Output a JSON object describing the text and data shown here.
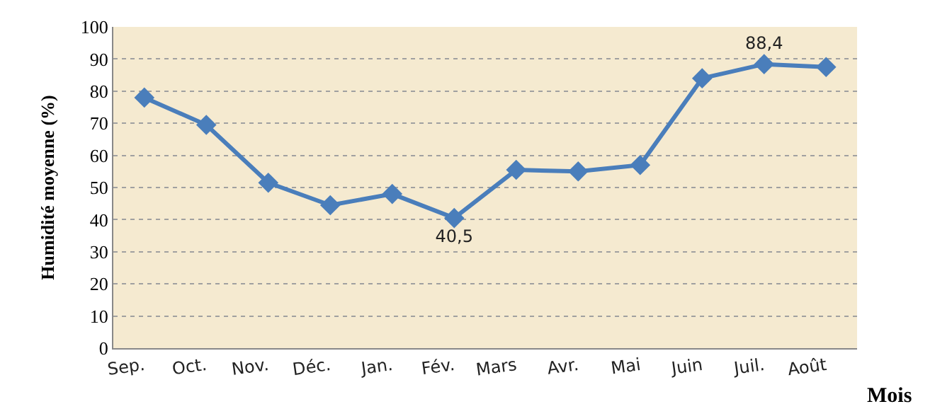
{
  "chart_data": {
    "type": "line",
    "categories": [
      "Sep.",
      "Oct.",
      "Nov.",
      "Déc.",
      "Jan.",
      "Fév.",
      "Mars",
      "Avr.",
      "Mai",
      "Juin",
      "Juil.",
      "Août"
    ],
    "series": [
      {
        "color": "#4a7ebb",
        "values": [
          78,
          69.5,
          51.5,
          44.5,
          48,
          40.5,
          55.5,
          55,
          57,
          84,
          88.4,
          87.5
        ],
        "value_labels": [
          null,
          null,
          null,
          null,
          null,
          "40,5",
          null,
          null,
          null,
          null,
          "88,4",
          null
        ]
      }
    ],
    "xlabel": "Mois",
    "ylabel": "Humidité moyenne (%)",
    "ylim": [
      0,
      100
    ],
    "yticks": [
      0,
      10,
      20,
      30,
      40,
      50,
      60,
      70,
      80,
      90,
      100
    ],
    "grid": "y",
    "marker": "diamond",
    "line_style": "solid"
  }
}
